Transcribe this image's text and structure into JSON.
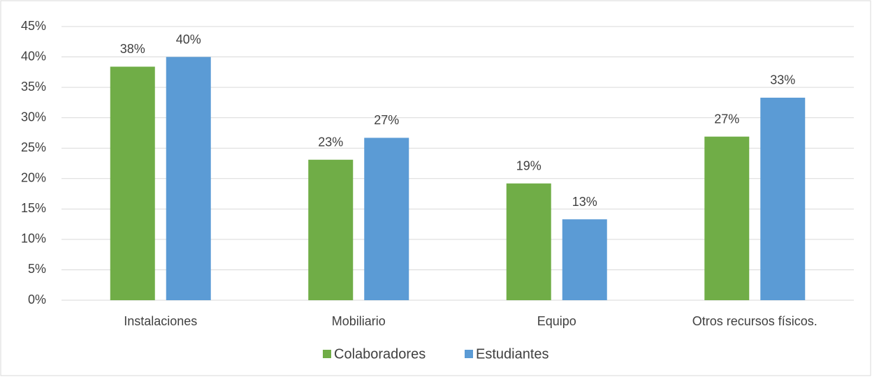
{
  "chart_data": {
    "type": "bar",
    "categories": [
      "Instalaciones",
      "Mobiliario",
      "Equipo",
      "Otros recursos físicos."
    ],
    "series": [
      {
        "name": "Colaboradores",
        "color": "#70ad47",
        "values": [
          38.4,
          23.1,
          19.2,
          26.9
        ],
        "value_labels": [
          "38%",
          "23%",
          "19%",
          "27%"
        ]
      },
      {
        "name": "Estudiantes",
        "color": "#5b9bd5",
        "values": [
          40,
          26.7,
          13.3,
          33.3
        ],
        "value_labels": [
          "40%",
          "27%",
          "13%",
          "33%"
        ]
      }
    ],
    "ylim": [
      0,
      45
    ],
    "yticks": [
      {
        "value": 0,
        "label": "0%"
      },
      {
        "value": 5,
        "label": "5%"
      },
      {
        "value": 10,
        "label": "10%"
      },
      {
        "value": 15,
        "label": "15%"
      },
      {
        "value": 20,
        "label": "20%"
      },
      {
        "value": 25,
        "label": "25%"
      },
      {
        "value": 30,
        "label": "30%"
      },
      {
        "value": 35,
        "label": "35%"
      },
      {
        "value": 40,
        "label": "40%"
      },
      {
        "value": 45,
        "label": "45%"
      }
    ],
    "grid": true,
    "legend": "bottom"
  }
}
